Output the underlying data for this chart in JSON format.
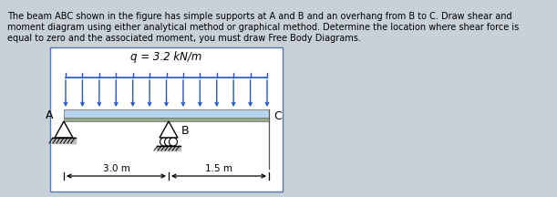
{
  "bg_color": "#c8d0d8",
  "text_color": "#000000",
  "paragraph_line1": "The beam ABC shown in the figure has simple supports at A and B and an overhang from B to C. Draw shear and",
  "paragraph_line2": "moment diagram using either analytical method or graphical method. Determine the location where shear force is",
  "paragraph_line3": "equal to zero and the associated moment, you must draw Free Body Diagrams.",
  "box_bg": "#ffffff",
  "box_border": "#5577aa",
  "beam_color_top": "#b8d4ec",
  "beam_color_bottom": "#9aaa88",
  "label_q": "q = 3.2 kN/m",
  "label_A": "A",
  "label_B": "B",
  "label_C": "C",
  "dim1": "3.0 m",
  "dim2": "1.5 m",
  "arrow_color": "#2255cc"
}
